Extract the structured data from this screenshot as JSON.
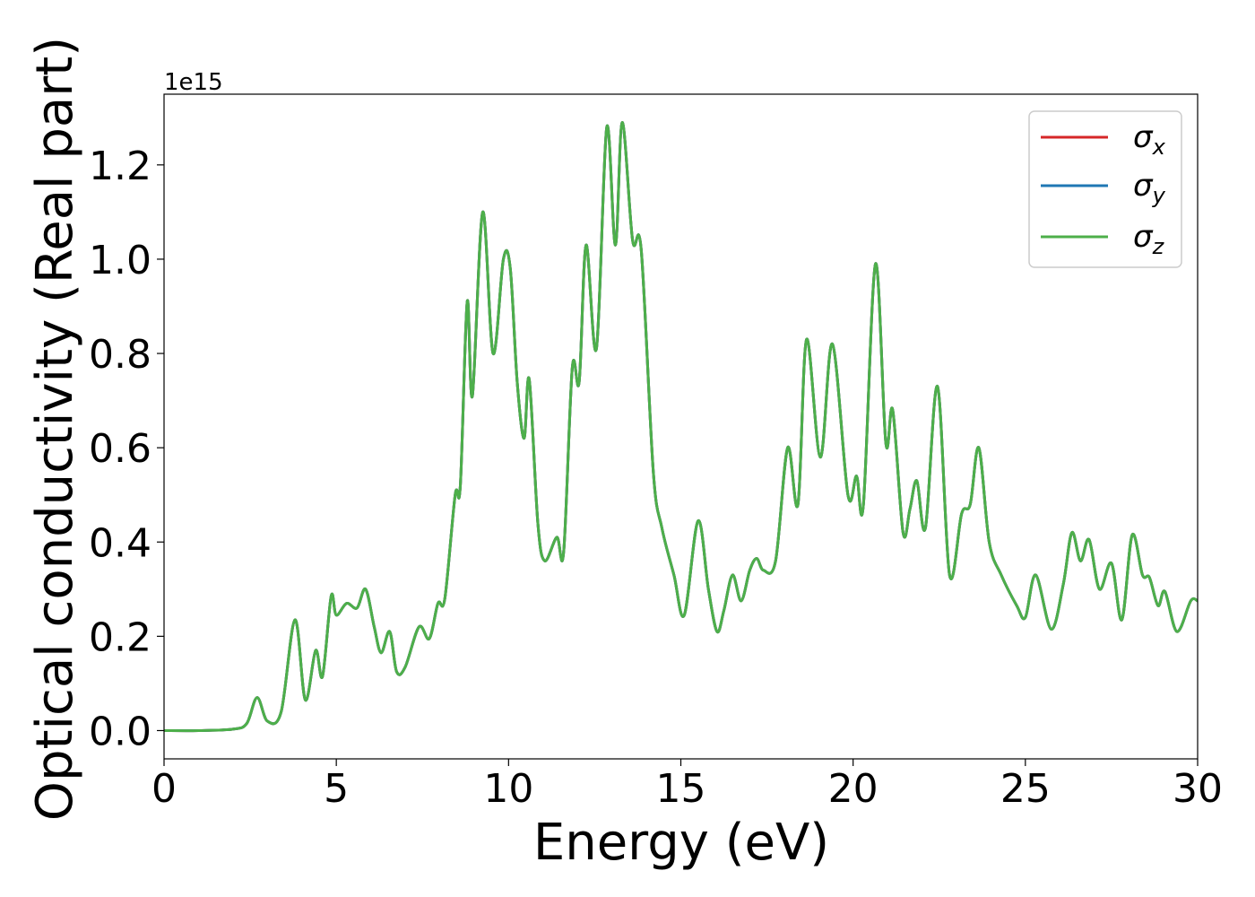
{
  "chart_data": {
    "type": "line",
    "title": "",
    "xlabel": "Energy (eV)",
    "ylabel": "Optical conductivity (Real part)",
    "y_offset_text": "1e15",
    "xlim": [
      0,
      30
    ],
    "ylim": [
      -0.06,
      1.35
    ],
    "x_ticks": [
      0,
      5,
      10,
      15,
      20,
      25,
      30
    ],
    "x_tick_labels": [
      "0",
      "5",
      "10",
      "15",
      "20",
      "25",
      "30"
    ],
    "y_ticks": [
      0.0,
      0.2,
      0.4,
      0.6,
      0.8,
      1.0,
      1.2
    ],
    "y_tick_labels": [
      "0.0",
      "0.2",
      "0.4",
      "0.6",
      "0.8",
      "1.0",
      "1.2"
    ],
    "grid": false,
    "legend_position": "top-right",
    "x": [
      0,
      1,
      2,
      2.4,
      2.7,
      3.0,
      3.4,
      3.8,
      4.1,
      4.4,
      4.6,
      4.85,
      5.0,
      5.3,
      5.6,
      5.85,
      6.1,
      6.3,
      6.55,
      6.75,
      7.0,
      7.4,
      7.7,
      7.95,
      8.15,
      8.45,
      8.6,
      8.8,
      8.95,
      9.25,
      9.55,
      9.85,
      10.05,
      10.25,
      10.45,
      10.6,
      10.85,
      11.05,
      11.4,
      11.6,
      11.85,
      12.05,
      12.25,
      12.55,
      12.85,
      13.1,
      13.3,
      13.6,
      13.85,
      14.2,
      14.45,
      14.8,
      15.1,
      15.5,
      15.8,
      16.05,
      16.25,
      16.5,
      16.75,
      17.0,
      17.2,
      17.4,
      17.75,
      18.1,
      18.4,
      18.65,
      19.05,
      19.4,
      19.85,
      20.1,
      20.3,
      20.65,
      20.95,
      21.15,
      21.45,
      21.65,
      21.85,
      22.1,
      22.45,
      22.8,
      23.15,
      23.4,
      23.65,
      23.95,
      24.3,
      24.75,
      25.0,
      25.3,
      25.75,
      26.1,
      26.35,
      26.6,
      26.85,
      27.15,
      27.5,
      27.8,
      28.1,
      28.4,
      28.6,
      28.85,
      29.05,
      29.4,
      29.8,
      30.0
    ],
    "series": [
      {
        "name": "σx",
        "color": "#d62728",
        "values": [
          0,
          0,
          0.003,
          0.015,
          0.07,
          0.02,
          0.04,
          0.235,
          0.065,
          0.17,
          0.115,
          0.285,
          0.245,
          0.27,
          0.26,
          0.3,
          0.22,
          0.165,
          0.21,
          0.125,
          0.135,
          0.22,
          0.195,
          0.27,
          0.28,
          0.5,
          0.52,
          0.91,
          0.71,
          1.1,
          0.8,
          1.0,
          0.98,
          0.74,
          0.62,
          0.745,
          0.44,
          0.36,
          0.41,
          0.38,
          0.77,
          0.74,
          1.03,
          0.81,
          1.28,
          1.03,
          1.29,
          1.04,
          1.02,
          0.55,
          0.43,
          0.33,
          0.245,
          0.445,
          0.3,
          0.21,
          0.255,
          0.33,
          0.275,
          0.34,
          0.365,
          0.34,
          0.36,
          0.6,
          0.48,
          0.83,
          0.58,
          0.82,
          0.5,
          0.54,
          0.48,
          0.99,
          0.61,
          0.68,
          0.42,
          0.47,
          0.53,
          0.43,
          0.73,
          0.33,
          0.46,
          0.48,
          0.6,
          0.4,
          0.33,
          0.265,
          0.24,
          0.33,
          0.215,
          0.31,
          0.42,
          0.36,
          0.405,
          0.3,
          0.355,
          0.235,
          0.415,
          0.33,
          0.325,
          0.265,
          0.295,
          0.21,
          0.275,
          0.275
        ]
      },
      {
        "name": "σy",
        "color": "#1f77b4",
        "values": [
          0,
          0,
          0.003,
          0.015,
          0.07,
          0.02,
          0.04,
          0.235,
          0.065,
          0.17,
          0.115,
          0.285,
          0.245,
          0.27,
          0.26,
          0.3,
          0.22,
          0.165,
          0.21,
          0.125,
          0.135,
          0.22,
          0.195,
          0.27,
          0.28,
          0.5,
          0.52,
          0.91,
          0.71,
          1.1,
          0.8,
          1.0,
          0.98,
          0.74,
          0.62,
          0.745,
          0.44,
          0.36,
          0.41,
          0.38,
          0.77,
          0.74,
          1.03,
          0.81,
          1.28,
          1.03,
          1.29,
          1.04,
          1.02,
          0.55,
          0.43,
          0.33,
          0.245,
          0.445,
          0.3,
          0.21,
          0.255,
          0.33,
          0.275,
          0.34,
          0.365,
          0.34,
          0.36,
          0.6,
          0.48,
          0.83,
          0.58,
          0.82,
          0.5,
          0.54,
          0.48,
          0.99,
          0.61,
          0.68,
          0.42,
          0.47,
          0.53,
          0.43,
          0.73,
          0.33,
          0.46,
          0.48,
          0.6,
          0.4,
          0.33,
          0.265,
          0.24,
          0.33,
          0.215,
          0.31,
          0.42,
          0.36,
          0.405,
          0.3,
          0.355,
          0.235,
          0.415,
          0.33,
          0.325,
          0.265,
          0.295,
          0.21,
          0.275,
          0.275
        ]
      },
      {
        "name": "σz",
        "color": "#4daf4a",
        "values": [
          0,
          0,
          0.003,
          0.015,
          0.07,
          0.02,
          0.04,
          0.235,
          0.065,
          0.17,
          0.115,
          0.285,
          0.245,
          0.27,
          0.26,
          0.3,
          0.22,
          0.165,
          0.21,
          0.125,
          0.135,
          0.22,
          0.195,
          0.27,
          0.28,
          0.5,
          0.52,
          0.91,
          0.71,
          1.1,
          0.8,
          1.0,
          0.98,
          0.74,
          0.62,
          0.745,
          0.44,
          0.36,
          0.41,
          0.38,
          0.77,
          0.74,
          1.03,
          0.81,
          1.28,
          1.03,
          1.29,
          1.04,
          1.02,
          0.55,
          0.43,
          0.33,
          0.245,
          0.445,
          0.3,
          0.21,
          0.255,
          0.33,
          0.275,
          0.34,
          0.365,
          0.34,
          0.36,
          0.6,
          0.48,
          0.83,
          0.58,
          0.82,
          0.5,
          0.54,
          0.48,
          0.99,
          0.61,
          0.68,
          0.42,
          0.47,
          0.53,
          0.43,
          0.73,
          0.33,
          0.46,
          0.48,
          0.6,
          0.4,
          0.33,
          0.265,
          0.24,
          0.33,
          0.215,
          0.31,
          0.42,
          0.36,
          0.405,
          0.3,
          0.355,
          0.235,
          0.415,
          0.33,
          0.325,
          0.265,
          0.295,
          0.21,
          0.275,
          0.275
        ]
      }
    ],
    "legend": [
      {
        "symbol": "σ",
        "sub": "x"
      },
      {
        "symbol": "σ",
        "sub": "y"
      },
      {
        "symbol": "σ",
        "sub": "z"
      }
    ]
  }
}
